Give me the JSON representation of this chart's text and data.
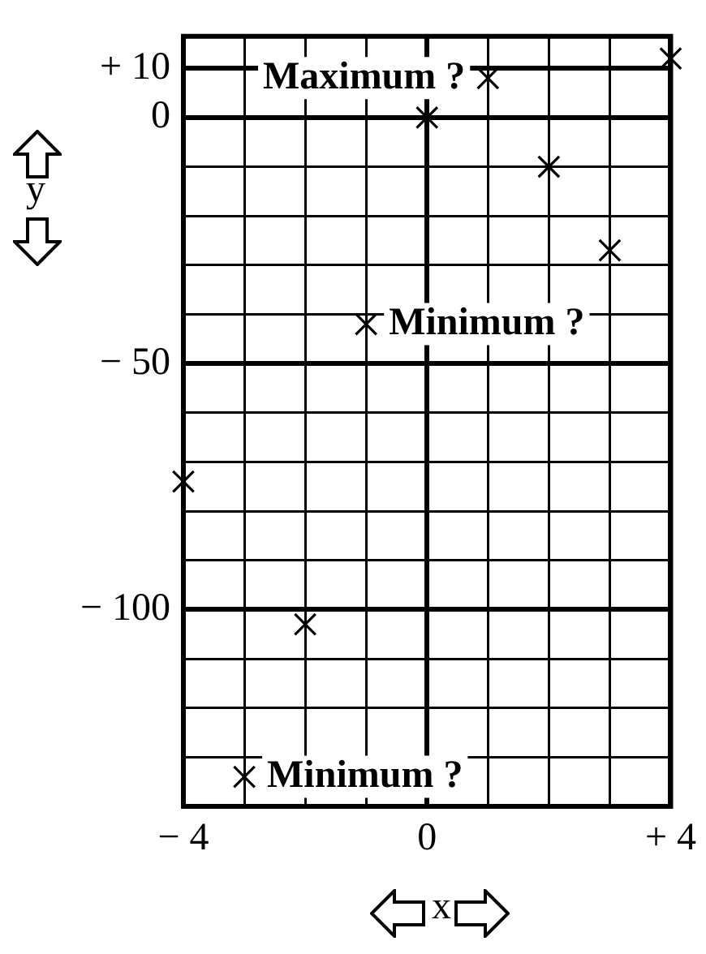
{
  "chart_data": {
    "type": "scatter",
    "xlabel": "x",
    "ylabel": "y",
    "x": [
      -4,
      -3,
      -2,
      -1,
      0,
      1,
      2,
      3,
      4
    ],
    "series": [
      {
        "color": "#000000",
        "values": [
          -74,
          -134,
          -103,
          -42,
          0,
          8,
          -10,
          -27,
          12
        ]
      }
    ],
    "xlim": [
      -4,
      4
    ],
    "xticks": [
      {
        "value": -4,
        "label": "− 4"
      },
      {
        "value": -3,
        "label": null
      },
      {
        "value": -2,
        "label": null
      },
      {
        "value": -1,
        "label": null
      },
      0,
      {
        "value": 1,
        "label": null
      },
      {
        "value": 2,
        "label": null
      },
      {
        "value": 3,
        "label": null
      },
      {
        "value": 4,
        "label": "+ 4"
      }
    ],
    "ylim": [
      -140,
      16.5
    ],
    "yticks": [
      {
        "value": 10,
        "label": "+ 10"
      },
      0,
      {
        "value": -10,
        "label": null
      },
      {
        "value": -20,
        "label": null
      },
      {
        "value": -30,
        "label": null
      },
      {
        "value": -40,
        "label": null
      },
      {
        "value": -50,
        "label": "− 50"
      },
      {
        "value": -60,
        "label": null
      },
      {
        "value": -70,
        "label": null
      },
      {
        "value": -80,
        "label": null
      },
      {
        "value": -90,
        "label": null
      },
      {
        "value": -100,
        "label": "− 100"
      },
      {
        "value": -110,
        "label": null
      },
      {
        "value": -120,
        "label": null
      },
      {
        "value": -130,
        "label": null
      }
    ],
    "grid": true,
    "marker": "cross",
    "legend": false,
    "annotations": [
      {
        "text": "Maximum ?",
        "x": 1,
        "y": 8
      },
      {
        "text": "Minimum ?",
        "x": -1,
        "y": -42
      },
      {
        "text": "Minimum ?",
        "x": -3,
        "y": -134
      }
    ]
  }
}
